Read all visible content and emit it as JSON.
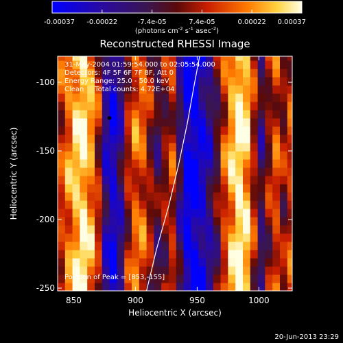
{
  "chart_data": {
    "type": "heatmap",
    "title": "Reconstructed RHESSI Image",
    "xlabel": "Heliocentric X (arcsec)",
    "ylabel": "Heliocentric Y (arcsec)",
    "xlim": [
      837,
      1027
    ],
    "ylim": [
      -252,
      -81
    ],
    "x_ticks": [
      850,
      900,
      950,
      1000
    ],
    "y_ticks": [
      -100,
      -150,
      -200,
      -250
    ],
    "colorbar": {
      "ticks": [
        "-0.00037",
        "-0.00022",
        "-7.4e-05",
        "7.4e-05",
        "0.00022",
        "0.00037"
      ],
      "label_line1": "(photons cm",
      "label_sup1": "-2",
      "label_mid1": " s",
      "label_sup2": "-1",
      "label_mid2": " asec",
      "label_sup3": "-2",
      "label_end": ")"
    },
    "info_lines": [
      "31-May-2004 01:59:54.000 to 02:05:54.000",
      "Detectors: 4F 5F 6F 7F 8F, Att 0",
      "Energy Range: 25.0 - 50.0 keV",
      "Clean     Total counts: 4.72E+04"
    ],
    "peak_label": "Position of Peak = [853,-155]",
    "peak_position": [
      853,
      -155
    ],
    "marker_position": [
      879,
      -126
    ],
    "limb_curve": [
      [
        909,
        -252
      ],
      [
        917,
        -222
      ],
      [
        927,
        -190
      ],
      [
        935,
        -160
      ],
      [
        942,
        -130
      ],
      [
        948,
        -100
      ],
      [
        952,
        -81
      ]
    ],
    "columns": [
      {
        "x": 837,
        "v": 0.3
      },
      {
        "x": 843,
        "v": 0.55
      },
      {
        "x": 849,
        "v": 0.78
      },
      {
        "x": 855,
        "v": 0.9
      },
      {
        "x": 861,
        "v": 0.62
      },
      {
        "x": 867,
        "v": 0.2
      },
      {
        "x": 873,
        "v": -0.55
      },
      {
        "x": 879,
        "v": -0.8
      },
      {
        "x": 885,
        "v": -0.45
      },
      {
        "x": 891,
        "v": 0.15
      },
      {
        "x": 897,
        "v": 0.45
      },
      {
        "x": 903,
        "v": 0.4
      },
      {
        "x": 909,
        "v": 0.1
      },
      {
        "x": 915,
        "v": -0.2
      },
      {
        "x": 921,
        "v": 0.05
      },
      {
        "x": 927,
        "v": 0.25
      },
      {
        "x": 933,
        "v": -0.35
      },
      {
        "x": 939,
        "v": -0.9
      },
      {
        "x": 945,
        "v": -0.95
      },
      {
        "x": 951,
        "v": -0.75
      },
      {
        "x": 957,
        "v": -0.5
      },
      {
        "x": 963,
        "v": -0.1
      },
      {
        "x": 969,
        "v": 0.35
      },
      {
        "x": 975,
        "v": 0.7
      },
      {
        "x": 981,
        "v": 0.95
      },
      {
        "x": 987,
        "v": 0.75
      },
      {
        "x": 993,
        "v": 0.2
      },
      {
        "x": 999,
        "v": -0.3
      },
      {
        "x": 1005,
        "v": 0.1
      },
      {
        "x": 1011,
        "v": 0.35
      },
      {
        "x": 1017,
        "v": 0.1
      },
      {
        "x": 1023,
        "v": 0.3
      }
    ]
  },
  "footer_date": "20-Jun-2013 23:29",
  "colors": {
    "background": "#000000",
    "foreground": "#ffffff",
    "cmap": [
      "#0000ff",
      "#2a0aa0",
      "#3a1650",
      "#5a0a0a",
      "#c81e00",
      "#ff7a00",
      "#ffd240",
      "#ffffe6"
    ]
  }
}
